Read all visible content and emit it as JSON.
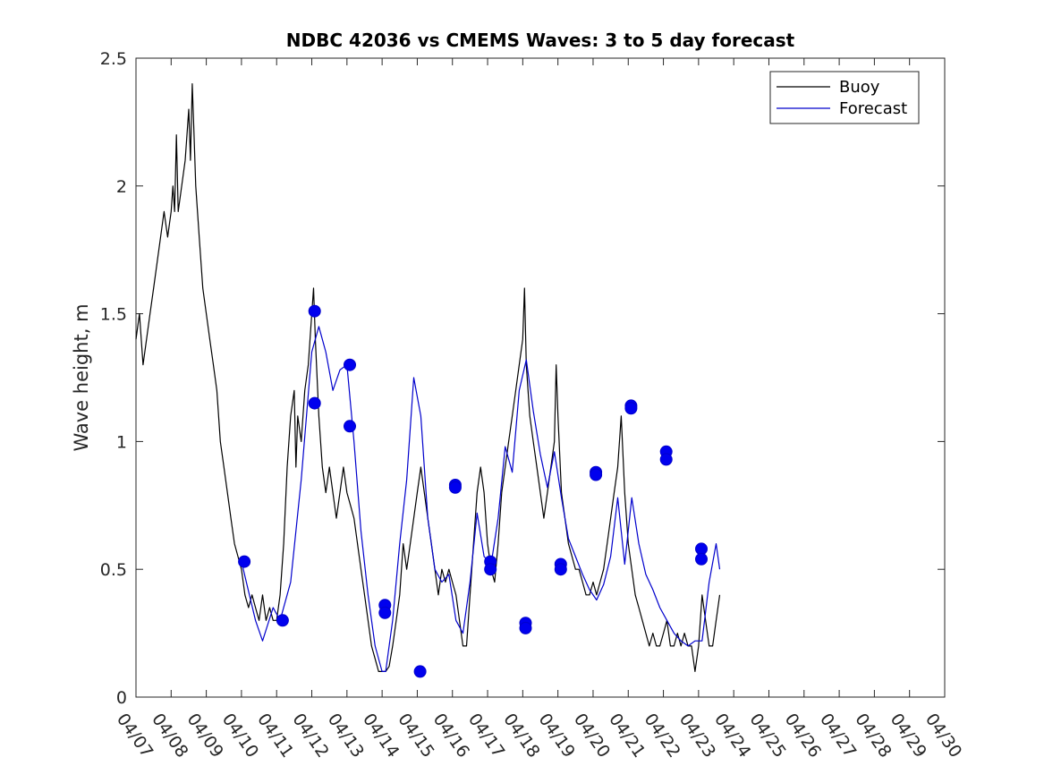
{
  "chart_data": {
    "type": "line",
    "title": "NDBC 42036 vs CMEMS Waves: 3 to 5 day forecast",
    "xlabel": "",
    "ylabel": "Wave height, m",
    "x_unit": "date (MM/DD)",
    "xlim": [
      "04/07",
      "04/30"
    ],
    "ylim": [
      0,
      2.5
    ],
    "x_ticks": [
      "04/07",
      "04/08",
      "04/09",
      "04/10",
      "04/11",
      "04/12",
      "04/13",
      "04/14",
      "04/15",
      "04/16",
      "04/17",
      "04/18",
      "04/19",
      "04/20",
      "04/21",
      "04/22",
      "04/23",
      "04/24",
      "04/25",
      "04/26",
      "04/27",
      "04/28",
      "04/29",
      "04/30"
    ],
    "y_ticks": [
      "0",
      "0.5",
      "1",
      "1.5",
      "2",
      "2.5"
    ],
    "grid": false,
    "legend_position": "top-right",
    "legend": [
      {
        "label": "Buoy",
        "color": "#000000"
      },
      {
        "label": "Forecast",
        "color": "#0000cc"
      }
    ],
    "series": [
      {
        "name": "Buoy",
        "color": "#000000",
        "x_days_label": "days after 04/07 00:00",
        "points": [
          [
            0.0,
            1.4
          ],
          [
            0.1,
            1.5
          ],
          [
            0.2,
            1.3
          ],
          [
            0.3,
            1.4
          ],
          [
            0.4,
            1.5
          ],
          [
            0.5,
            1.6
          ],
          [
            0.6,
            1.7
          ],
          [
            0.7,
            1.8
          ],
          [
            0.8,
            1.9
          ],
          [
            0.9,
            1.8
          ],
          [
            1.0,
            1.9
          ],
          [
            1.05,
            2.0
          ],
          [
            1.1,
            1.9
          ],
          [
            1.15,
            2.2
          ],
          [
            1.2,
            1.9
          ],
          [
            1.3,
            2.0
          ],
          [
            1.4,
            2.1
          ],
          [
            1.5,
            2.3
          ],
          [
            1.55,
            2.1
          ],
          [
            1.6,
            2.4
          ],
          [
            1.65,
            2.2
          ],
          [
            1.7,
            2.0
          ],
          [
            1.8,
            1.8
          ],
          [
            1.9,
            1.6
          ],
          [
            2.0,
            1.5
          ],
          [
            2.1,
            1.4
          ],
          [
            2.2,
            1.3
          ],
          [
            2.3,
            1.2
          ],
          [
            2.4,
            1.0
          ],
          [
            2.5,
            0.9
          ],
          [
            2.6,
            0.8
          ],
          [
            2.7,
            0.7
          ],
          [
            2.8,
            0.6
          ],
          [
            2.9,
            0.55
          ],
          [
            3.0,
            0.5
          ],
          [
            3.1,
            0.4
          ],
          [
            3.2,
            0.35
          ],
          [
            3.3,
            0.4
          ],
          [
            3.4,
            0.35
          ],
          [
            3.5,
            0.3
          ],
          [
            3.6,
            0.4
          ],
          [
            3.7,
            0.3
          ],
          [
            3.8,
            0.35
          ],
          [
            3.9,
            0.3
          ],
          [
            4.0,
            0.3
          ],
          [
            4.1,
            0.4
          ],
          [
            4.2,
            0.6
          ],
          [
            4.3,
            0.9
          ],
          [
            4.4,
            1.1
          ],
          [
            4.5,
            1.2
          ],
          [
            4.55,
            0.9
          ],
          [
            4.6,
            1.1
          ],
          [
            4.7,
            1.0
          ],
          [
            4.8,
            1.2
          ],
          [
            4.9,
            1.3
          ],
          [
            5.0,
            1.5
          ],
          [
            5.05,
            1.6
          ],
          [
            5.1,
            1.4
          ],
          [
            5.2,
            1.1
          ],
          [
            5.3,
            0.9
          ],
          [
            5.4,
            0.8
          ],
          [
            5.5,
            0.9
          ],
          [
            5.6,
            0.8
          ],
          [
            5.7,
            0.7
          ],
          [
            5.8,
            0.8
          ],
          [
            5.9,
            0.9
          ],
          [
            6.0,
            0.8
          ],
          [
            6.1,
            0.75
          ],
          [
            6.2,
            0.7
          ],
          [
            6.3,
            0.6
          ],
          [
            6.4,
            0.5
          ],
          [
            6.5,
            0.4
          ],
          [
            6.6,
            0.3
          ],
          [
            6.7,
            0.2
          ],
          [
            6.8,
            0.15
          ],
          [
            6.9,
            0.1
          ],
          [
            7.0,
            0.1
          ],
          [
            7.1,
            0.1
          ],
          [
            7.2,
            0.12
          ],
          [
            7.3,
            0.2
          ],
          [
            7.4,
            0.3
          ],
          [
            7.5,
            0.4
          ],
          [
            7.6,
            0.6
          ],
          [
            7.7,
            0.5
          ],
          [
            7.8,
            0.6
          ],
          [
            7.9,
            0.7
          ],
          [
            8.0,
            0.8
          ],
          [
            8.1,
            0.9
          ],
          [
            8.2,
            0.8
          ],
          [
            8.3,
            0.7
          ],
          [
            8.4,
            0.6
          ],
          [
            8.5,
            0.5
          ],
          [
            8.6,
            0.4
          ],
          [
            8.7,
            0.5
          ],
          [
            8.8,
            0.45
          ],
          [
            8.9,
            0.5
          ],
          [
            9.0,
            0.45
          ],
          [
            9.1,
            0.4
          ],
          [
            9.2,
            0.3
          ],
          [
            9.3,
            0.2
          ],
          [
            9.4,
            0.2
          ],
          [
            9.5,
            0.4
          ],
          [
            9.6,
            0.6
          ],
          [
            9.7,
            0.8
          ],
          [
            9.8,
            0.9
          ],
          [
            9.9,
            0.8
          ],
          [
            10.0,
            0.6
          ],
          [
            10.1,
            0.5
          ],
          [
            10.2,
            0.45
          ],
          [
            10.3,
            0.6
          ],
          [
            10.4,
            0.8
          ],
          [
            10.5,
            0.9
          ],
          [
            10.6,
            1.0
          ],
          [
            10.7,
            1.1
          ],
          [
            10.8,
            1.2
          ],
          [
            10.9,
            1.3
          ],
          [
            11.0,
            1.4
          ],
          [
            11.05,
            1.6
          ],
          [
            11.1,
            1.3
          ],
          [
            11.2,
            1.1
          ],
          [
            11.3,
            1.0
          ],
          [
            11.4,
            0.9
          ],
          [
            11.5,
            0.8
          ],
          [
            11.6,
            0.7
          ],
          [
            11.7,
            0.8
          ],
          [
            11.8,
            0.9
          ],
          [
            11.9,
            1.0
          ],
          [
            11.95,
            1.3
          ],
          [
            12.0,
            1.1
          ],
          [
            12.1,
            0.8
          ],
          [
            12.2,
            0.7
          ],
          [
            12.3,
            0.6
          ],
          [
            12.4,
            0.55
          ],
          [
            12.5,
            0.5
          ],
          [
            12.6,
            0.5
          ],
          [
            12.7,
            0.45
          ],
          [
            12.8,
            0.4
          ],
          [
            12.9,
            0.4
          ],
          [
            13.0,
            0.45
          ],
          [
            13.1,
            0.4
          ],
          [
            13.2,
            0.45
          ],
          [
            13.3,
            0.5
          ],
          [
            13.4,
            0.6
          ],
          [
            13.5,
            0.7
          ],
          [
            13.6,
            0.8
          ],
          [
            13.7,
            0.9
          ],
          [
            13.8,
            1.1
          ],
          [
            13.9,
            0.8
          ],
          [
            14.0,
            0.6
          ],
          [
            14.1,
            0.5
          ],
          [
            14.2,
            0.4
          ],
          [
            14.3,
            0.35
          ],
          [
            14.4,
            0.3
          ],
          [
            14.5,
            0.25
          ],
          [
            14.6,
            0.2
          ],
          [
            14.7,
            0.25
          ],
          [
            14.8,
            0.2
          ],
          [
            14.9,
            0.2
          ],
          [
            15.0,
            0.25
          ],
          [
            15.1,
            0.3
          ],
          [
            15.2,
            0.2
          ],
          [
            15.3,
            0.2
          ],
          [
            15.4,
            0.25
          ],
          [
            15.5,
            0.2
          ],
          [
            15.6,
            0.25
          ],
          [
            15.7,
            0.2
          ],
          [
            15.8,
            0.2
          ],
          [
            15.9,
            0.1
          ],
          [
            16.0,
            0.2
          ],
          [
            16.1,
            0.4
          ],
          [
            16.2,
            0.3
          ],
          [
            16.3,
            0.2
          ],
          [
            16.4,
            0.2
          ],
          [
            16.5,
            0.3
          ],
          [
            16.6,
            0.4
          ]
        ]
      },
      {
        "name": "Forecast",
        "color": "#0000cc",
        "x_days_label": "days after 04/07 00:00",
        "points": [
          [
            3.0,
            0.53
          ],
          [
            3.4,
            0.3
          ],
          [
            3.6,
            0.22
          ],
          [
            3.9,
            0.35
          ],
          [
            4.1,
            0.3
          ],
          [
            4.4,
            0.45
          ],
          [
            4.7,
            0.85
          ],
          [
            5.0,
            1.35
          ],
          [
            5.2,
            1.45
          ],
          [
            5.4,
            1.35
          ],
          [
            5.6,
            1.2
          ],
          [
            5.8,
            1.28
          ],
          [
            6.0,
            1.3
          ],
          [
            6.2,
            1.0
          ],
          [
            6.4,
            0.65
          ],
          [
            6.6,
            0.4
          ],
          [
            6.8,
            0.2
          ],
          [
            7.0,
            0.1
          ],
          [
            7.1,
            0.1
          ],
          [
            7.3,
            0.3
          ],
          [
            7.5,
            0.6
          ],
          [
            7.7,
            0.85
          ],
          [
            7.9,
            1.25
          ],
          [
            8.1,
            1.1
          ],
          [
            8.3,
            0.7
          ],
          [
            8.5,
            0.5
          ],
          [
            8.7,
            0.45
          ],
          [
            8.9,
            0.48
          ],
          [
            9.1,
            0.3
          ],
          [
            9.3,
            0.25
          ],
          [
            9.5,
            0.45
          ],
          [
            9.7,
            0.72
          ],
          [
            9.9,
            0.55
          ],
          [
            10.1,
            0.52
          ],
          [
            10.3,
            0.7
          ],
          [
            10.5,
            0.98
          ],
          [
            10.7,
            0.88
          ],
          [
            10.9,
            1.2
          ],
          [
            11.1,
            1.32
          ],
          [
            11.3,
            1.12
          ],
          [
            11.5,
            0.95
          ],
          [
            11.7,
            0.82
          ],
          [
            11.9,
            0.96
          ],
          [
            12.1,
            0.78
          ],
          [
            12.3,
            0.62
          ],
          [
            12.5,
            0.55
          ],
          [
            12.7,
            0.48
          ],
          [
            12.9,
            0.42
          ],
          [
            13.1,
            0.38
          ],
          [
            13.3,
            0.44
          ],
          [
            13.5,
            0.55
          ],
          [
            13.7,
            0.78
          ],
          [
            13.9,
            0.52
          ],
          [
            14.1,
            0.78
          ],
          [
            14.3,
            0.6
          ],
          [
            14.5,
            0.48
          ],
          [
            14.7,
            0.42
          ],
          [
            14.9,
            0.35
          ],
          [
            15.1,
            0.3
          ],
          [
            15.3,
            0.25
          ],
          [
            15.5,
            0.22
          ],
          [
            15.7,
            0.2
          ],
          [
            15.9,
            0.22
          ],
          [
            16.1,
            0.22
          ],
          [
            16.3,
            0.45
          ],
          [
            16.5,
            0.6
          ],
          [
            16.6,
            0.5
          ]
        ]
      }
    ],
    "forecast_markers": [
      [
        3.08,
        0.53
      ],
      [
        4.17,
        0.3
      ],
      [
        5.08,
        1.51
      ],
      [
        5.08,
        1.15
      ],
      [
        6.08,
        1.3
      ],
      [
        6.08,
        1.06
      ],
      [
        7.08,
        0.36
      ],
      [
        7.08,
        0.33
      ],
      [
        8.08,
        0.1
      ],
      [
        9.08,
        0.83
      ],
      [
        9.08,
        0.82
      ],
      [
        10.08,
        0.53
      ],
      [
        10.08,
        0.5
      ],
      [
        11.08,
        0.29
      ],
      [
        11.08,
        0.27
      ],
      [
        12.08,
        0.52
      ],
      [
        12.08,
        0.5
      ],
      [
        13.08,
        0.88
      ],
      [
        13.08,
        0.87
      ],
      [
        14.08,
        1.14
      ],
      [
        14.08,
        1.13
      ],
      [
        15.08,
        0.96
      ],
      [
        15.08,
        0.93
      ],
      [
        16.08,
        0.58
      ],
      [
        16.08,
        0.54
      ]
    ]
  }
}
